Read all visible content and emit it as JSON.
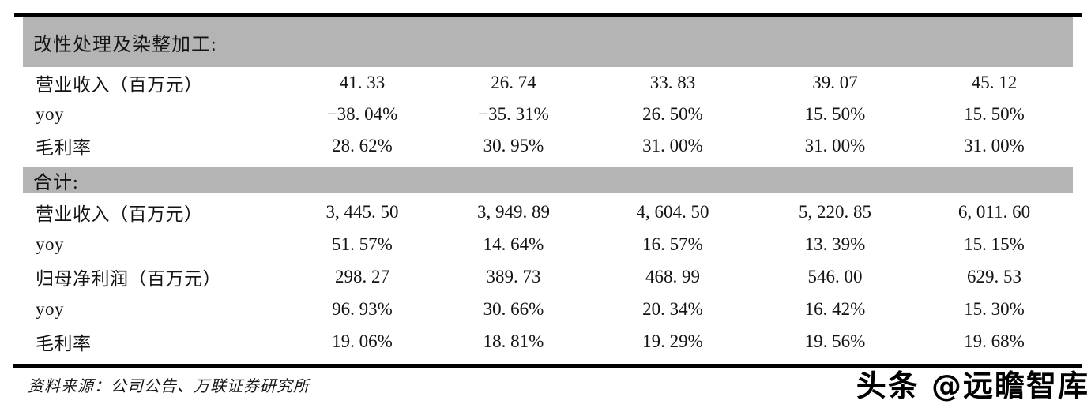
{
  "colors": {
    "band-gray": "#b4b4b4",
    "rule-black": "#000000",
    "ink": "#141414"
  },
  "table": {
    "sections": [
      {
        "header": "改性处理及染整加工:",
        "rows": [
          {
            "label": "营业收入（百万元）",
            "values": [
              "41. 33",
              "26. 74",
              "33. 83",
              "39. 07",
              "45. 12"
            ]
          },
          {
            "label": "yoy",
            "values": [
              "−38. 04%",
              "−35. 31%",
              "26. 50%",
              "15. 50%",
              "15. 50%"
            ]
          },
          {
            "label": "毛利率",
            "values": [
              "28. 62%",
              "30. 95%",
              "31. 00%",
              "31. 00%",
              "31. 00%"
            ]
          }
        ]
      },
      {
        "header": "合计:",
        "rows": [
          {
            "label": "营业收入（百万元）",
            "values": [
              "3, 445. 50",
              "3, 949. 89",
              "4, 604. 50",
              "5, 220. 85",
              "6, 011. 60"
            ]
          },
          {
            "label": "yoy",
            "values": [
              "51. 57%",
              "14. 64%",
              "16. 57%",
              "13. 39%",
              "15. 15%"
            ]
          },
          {
            "label": "归母净利润（百万元）",
            "values": [
              "298. 27",
              "389. 73",
              "468. 99",
              "546. 00",
              "629. 53"
            ]
          },
          {
            "label": "yoy",
            "values": [
              "96. 93%",
              "30. 66%",
              "20. 34%",
              "16. 42%",
              "15. 30%"
            ]
          },
          {
            "label": "毛利率",
            "values": [
              "19. 06%",
              "18. 81%",
              "19. 29%",
              "19. 56%",
              "19. 68%"
            ]
          }
        ]
      }
    ]
  },
  "footer": {
    "source": "资料来源：公司公告、万联证券研究所"
  },
  "watermark": {
    "text": "头条 @远瞻智库"
  }
}
